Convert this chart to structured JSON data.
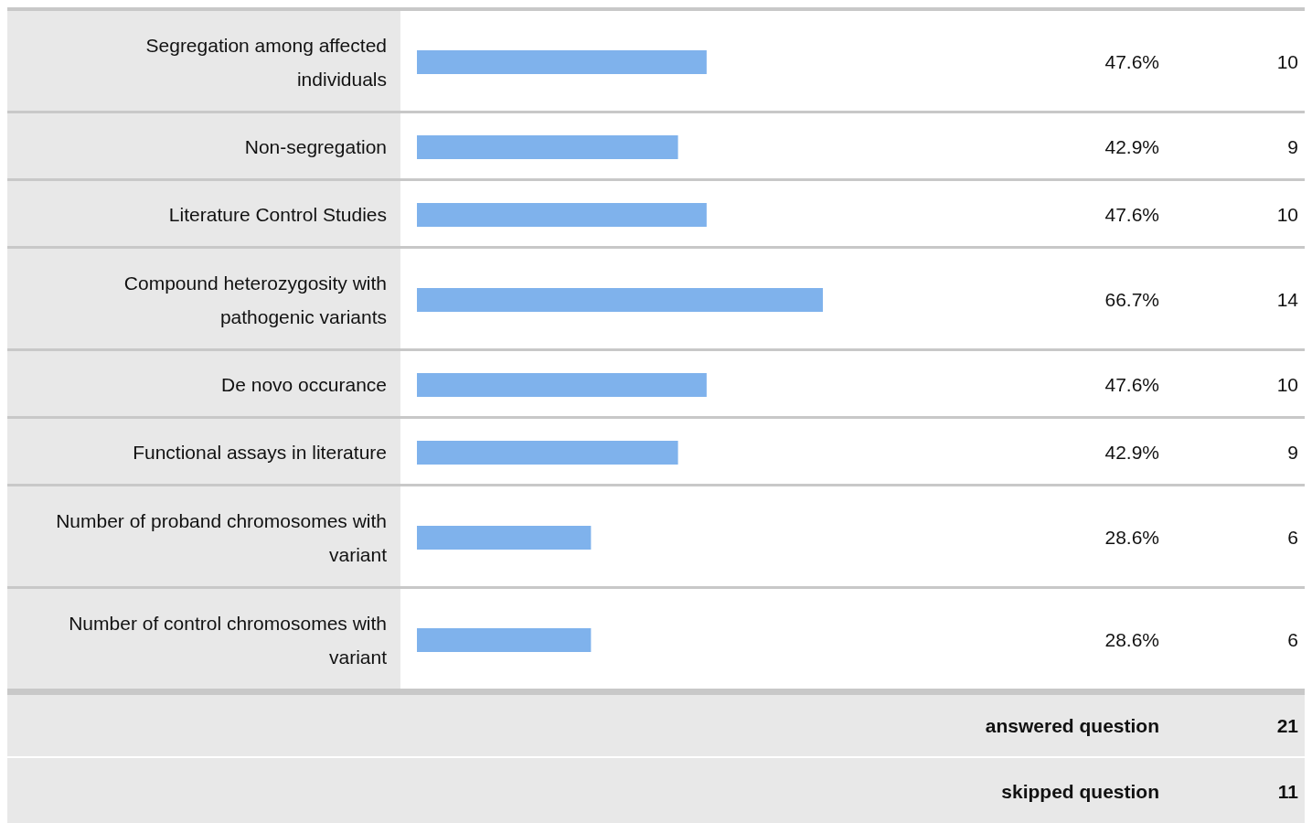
{
  "chart_data": {
    "type": "bar",
    "orientation": "horizontal",
    "categories": [
      "Segregation among affected individuals",
      "Non-segregation",
      "Literature Control Studies",
      "Compound heterozygosity with pathogenic variants",
      "De novo occurance",
      "Functional assays in literature",
      "Number of proband chromosomes with variant",
      "Number of control chromosomes with variant"
    ],
    "values": [
      47.6,
      42.9,
      47.6,
      66.7,
      47.6,
      42.9,
      28.6,
      28.6
    ],
    "value_labels": [
      "47.6%",
      "42.9%",
      "47.6%",
      "66.7%",
      "47.6%",
      "42.9%",
      "28.6%",
      "28.6%"
    ],
    "color": "#7fb2ec",
    "annotations": [
      "10",
      "9",
      "10",
      "14",
      "10",
      "9",
      "6",
      "6",
      "answered question",
      "21",
      "skipped question",
      "11"
    ]
  }
}
